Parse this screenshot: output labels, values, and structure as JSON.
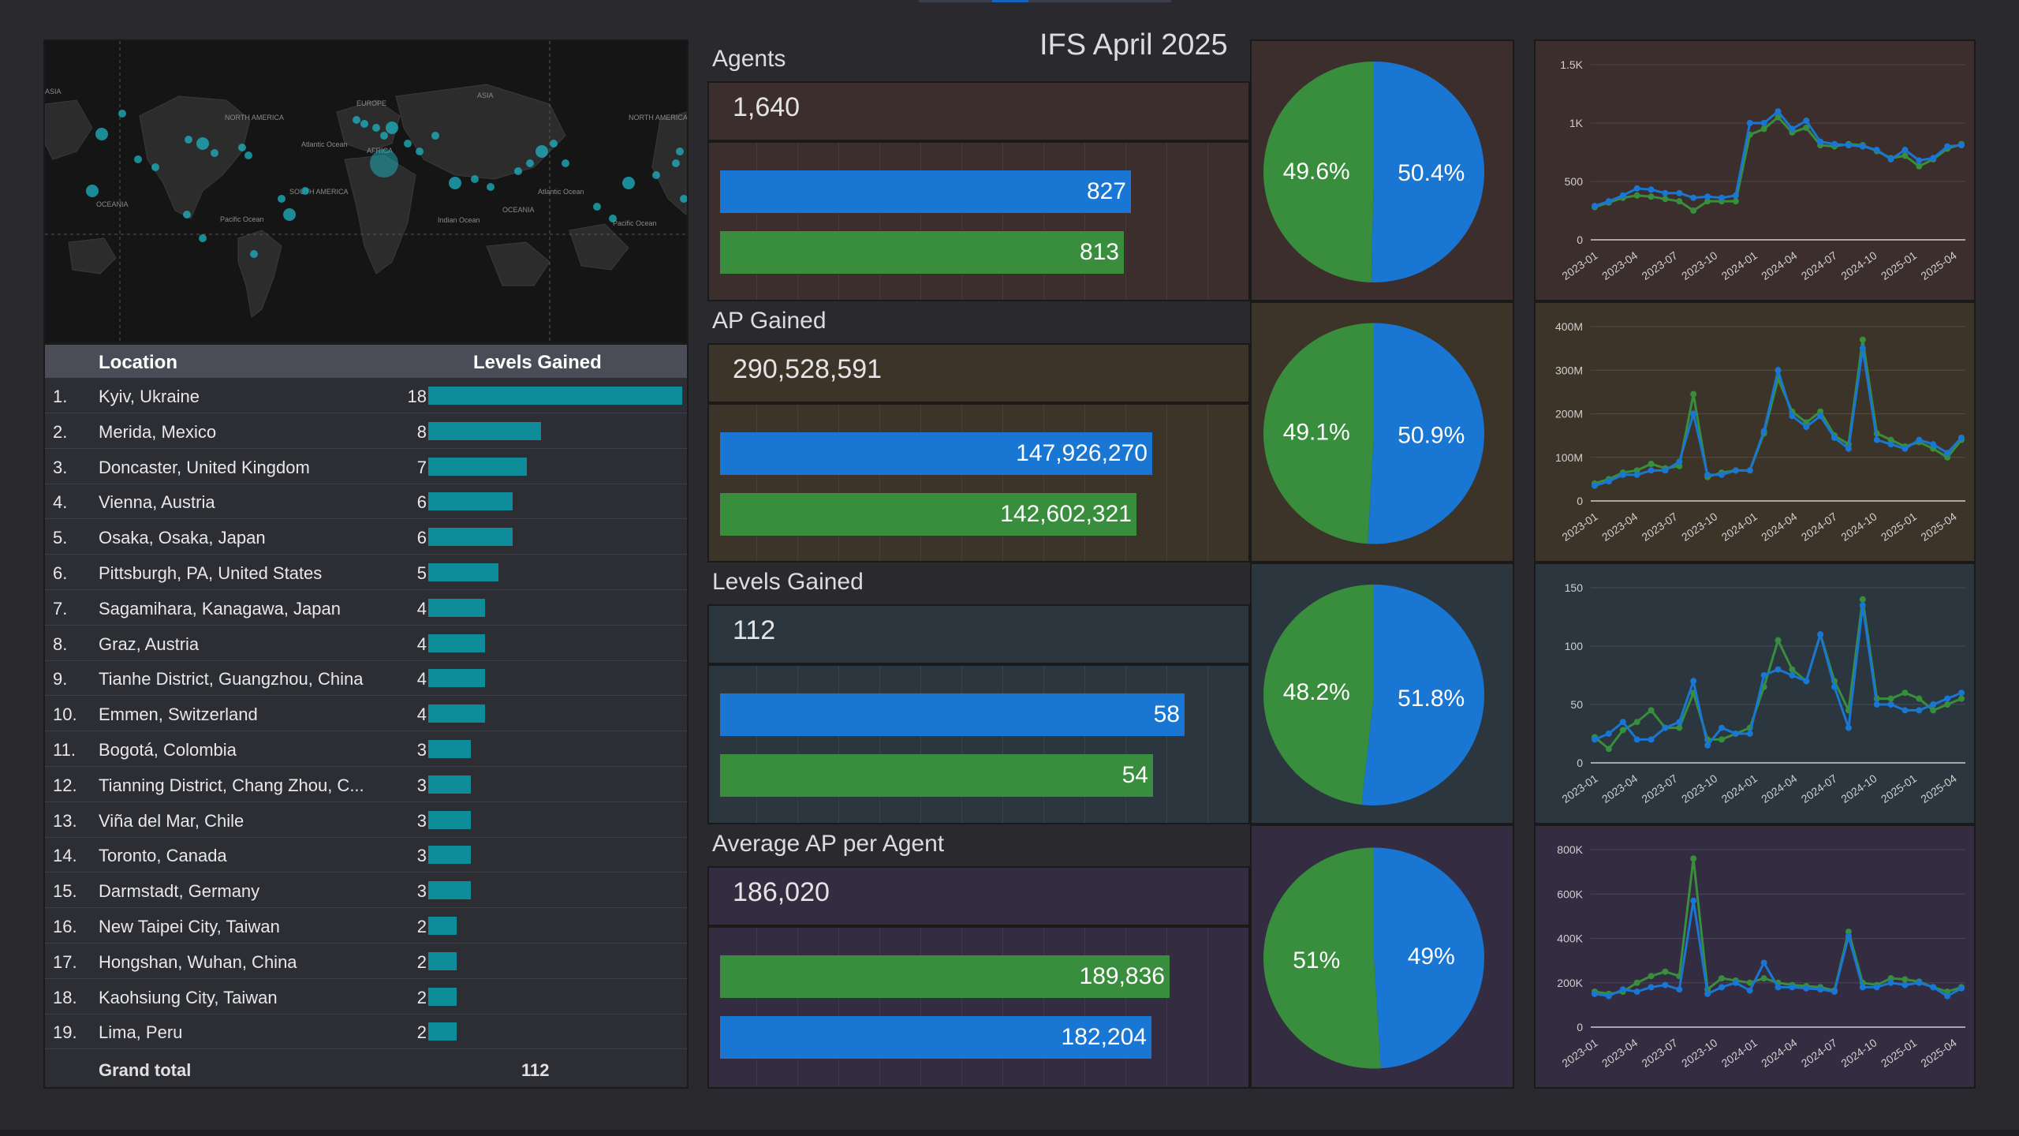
{
  "page_title": "IFS April 2025",
  "colors": {
    "blue": "#1976d2",
    "green": "#388e3c",
    "teal_bar": "#0f8c9a",
    "panel_agents": "#3b2e2c",
    "panel_ap": "#3c3429",
    "panel_levels": "#2b363e",
    "panel_avg": "#342c40"
  },
  "map": {
    "labels": [
      "ASIA",
      "NORTH AMERICA",
      "EUROPE",
      "ASIA",
      "NORTH AMERICA",
      "AFRICA",
      "SOUTH AMERICA",
      "OCEANIA",
      "OCEANIA",
      "Atlantic Ocean",
      "Pacific Ocean",
      "Indian Ocean",
      "Pacific Ocean",
      "Atlantic Ocean"
    ]
  },
  "table": {
    "col_location": "Location",
    "col_levels": "Levels Gained",
    "rows": [
      {
        "rank": "1.",
        "location": "Kyiv, Ukraine",
        "value": 18
      },
      {
        "rank": "2.",
        "location": "Merida, Mexico",
        "value": 8
      },
      {
        "rank": "3.",
        "location": "Doncaster, United Kingdom",
        "value": 7
      },
      {
        "rank": "4.",
        "location": "Vienna, Austria",
        "value": 6
      },
      {
        "rank": "5.",
        "location": "Osaka, Osaka, Japan",
        "value": 6
      },
      {
        "rank": "6.",
        "location": "Pittsburgh, PA, United States",
        "value": 5
      },
      {
        "rank": "7.",
        "location": "Sagamihara, Kanagawa, Japan",
        "value": 4
      },
      {
        "rank": "8.",
        "location": "Graz, Austria",
        "value": 4
      },
      {
        "rank": "9.",
        "location": "Tianhe District, Guangzhou, China",
        "value": 4
      },
      {
        "rank": "10.",
        "location": "Emmen, Switzerland",
        "value": 4
      },
      {
        "rank": "11.",
        "location": "Bogotá, Colombia",
        "value": 3
      },
      {
        "rank": "12.",
        "location": "Tianning District, Chang Zhou, C...",
        "value": 3
      },
      {
        "rank": "13.",
        "location": "Viña del Mar, Chile",
        "value": 3
      },
      {
        "rank": "14.",
        "location": "Toronto, Canada",
        "value": 3
      },
      {
        "rank": "15.",
        "location": "Darmstadt, Germany",
        "value": 3
      },
      {
        "rank": "16.",
        "location": "New Taipei City, Taiwan",
        "value": 2
      },
      {
        "rank": "17.",
        "location": "Hongshan, Wuhan, China",
        "value": 2
      },
      {
        "rank": "18.",
        "location": "Kaohsiung City, Taiwan",
        "value": 2
      },
      {
        "rank": "19.",
        "location": "Lima, Peru",
        "value": 2
      }
    ],
    "grand_total_label": "Grand total",
    "grand_total_value": "112"
  },
  "sections": [
    {
      "title": "Agents",
      "total": "1,640"
    },
    {
      "title": "AP Gained",
      "total": "290,528,591"
    },
    {
      "title": "Levels Gained",
      "total": "112"
    },
    {
      "title": "Average AP per Agent",
      "total": "186,020"
    }
  ],
  "chart_data": [
    {
      "type": "bar",
      "name": "Agents bars",
      "orientation": "horizontal",
      "bars": [
        {
          "color": "blue",
          "value": 827,
          "label": "827"
        },
        {
          "color": "green",
          "value": 813,
          "label": "813"
        }
      ],
      "xlim": [
        0,
        1000
      ]
    },
    {
      "type": "pie",
      "name": "Agents share",
      "slices": [
        {
          "color": "blue",
          "value": 50.4,
          "label": "50.4%"
        },
        {
          "color": "green",
          "value": 49.6,
          "label": "49.6%"
        }
      ]
    },
    {
      "type": "line",
      "name": "Agents over time",
      "x_ticks": [
        "2023-01",
        "2023-04",
        "2023-07",
        "2023-10",
        "2024-01",
        "2024-04",
        "2024-07",
        "2024-10",
        "2025-01",
        "2025-04"
      ],
      "y_ticks": [
        "0",
        "500",
        "1K",
        "1.5K"
      ],
      "ylim": [
        0,
        1500
      ],
      "series": [
        {
          "color": "blue",
          "values": [
            290,
            330,
            380,
            440,
            430,
            400,
            400,
            360,
            370,
            360,
            380,
            1000,
            1000,
            1100,
            950,
            1020,
            840,
            820,
            810,
            800,
            770,
            690,
            770,
            680,
            700,
            800,
            810
          ]
        },
        {
          "color": "green",
          "values": [
            280,
            320,
            360,
            380,
            370,
            350,
            330,
            250,
            330,
            330,
            330,
            900,
            950,
            1050,
            920,
            960,
            810,
            800,
            820,
            810,
            760,
            700,
            720,
            630,
            690,
            780,
            820
          ]
        }
      ]
    },
    {
      "type": "bar",
      "name": "AP Gained bars",
      "orientation": "horizontal",
      "bars": [
        {
          "color": "blue",
          "value": 147926270,
          "label": "147,926,270"
        },
        {
          "color": "green",
          "value": 142602321,
          "label": "142,602,321"
        }
      ],
      "xlim": [
        0,
        170000000
      ]
    },
    {
      "type": "pie",
      "name": "AP share",
      "slices": [
        {
          "color": "blue",
          "value": 50.9,
          "label": "50.9%"
        },
        {
          "color": "green",
          "value": 49.1,
          "label": "49.1%"
        }
      ]
    },
    {
      "type": "line",
      "name": "AP over time",
      "x_ticks": [
        "2023-01",
        "2023-04",
        "2023-07",
        "2023-10",
        "2024-01",
        "2024-04",
        "2024-07",
        "2024-10",
        "2025-01",
        "2025-04"
      ],
      "y_ticks": [
        "0",
        "100M",
        "200M",
        "300M",
        "400M"
      ],
      "ylim": [
        0,
        400000000
      ],
      "series": [
        {
          "color": "blue",
          "values": [
            35000000,
            45000000,
            60000000,
            60000000,
            70000000,
            70000000,
            90000000,
            200000000,
            60000000,
            60000000,
            70000000,
            70000000,
            160000000,
            300000000,
            195000000,
            170000000,
            195000000,
            145000000,
            120000000,
            350000000,
            140000000,
            130000000,
            120000000,
            140000000,
            130000000,
            110000000,
            145000000
          ]
        },
        {
          "color": "green",
          "values": [
            40000000,
            50000000,
            65000000,
            70000000,
            85000000,
            75000000,
            80000000,
            245000000,
            55000000,
            65000000,
            70000000,
            70000000,
            155000000,
            280000000,
            205000000,
            180000000,
            205000000,
            150000000,
            130000000,
            370000000,
            155000000,
            140000000,
            125000000,
            135000000,
            120000000,
            100000000,
            140000000
          ]
        }
      ]
    },
    {
      "type": "bar",
      "name": "Levels Gained bars",
      "orientation": "horizontal",
      "bars": [
        {
          "color": "blue",
          "value": 58,
          "label": "58"
        },
        {
          "color": "green",
          "value": 54,
          "label": "54"
        }
      ],
      "xlim": [
        0,
        62
      ]
    },
    {
      "type": "pie",
      "name": "Levels share",
      "slices": [
        {
          "color": "blue",
          "value": 51.8,
          "label": "51.8%"
        },
        {
          "color": "green",
          "value": 48.2,
          "label": "48.2%"
        }
      ]
    },
    {
      "type": "line",
      "name": "Levels over time",
      "x_ticks": [
        "2023-01",
        "2023-04",
        "2023-07",
        "2023-10",
        "2024-01",
        "2024-04",
        "2024-07",
        "2024-10",
        "2025-01",
        "2025-04"
      ],
      "y_ticks": [
        "0",
        "50",
        "100",
        "150"
      ],
      "ylim": [
        0,
        150
      ],
      "series": [
        {
          "color": "blue",
          "values": [
            20,
            25,
            35,
            20,
            20,
            30,
            35,
            70,
            15,
            30,
            25,
            25,
            75,
            80,
            75,
            70,
            110,
            65,
            30,
            135,
            50,
            50,
            45,
            45,
            50,
            55,
            60
          ]
        },
        {
          "color": "green",
          "values": [
            22,
            12,
            28,
            35,
            45,
            30,
            30,
            60,
            20,
            20,
            25,
            30,
            65,
            105,
            80,
            70,
            110,
            70,
            45,
            140,
            55,
            55,
            60,
            55,
            45,
            50,
            55
          ]
        }
      ]
    },
    {
      "type": "bar",
      "name": "Average AP per Agent bars",
      "orientation": "horizontal",
      "bars": [
        {
          "color": "green",
          "value": 189836,
          "label": "189,836"
        },
        {
          "color": "blue",
          "value": 182204,
          "label": "182,204"
        }
      ],
      "xlim": [
        0,
        210000
      ]
    },
    {
      "type": "pie",
      "name": "Avg AP share",
      "slices": [
        {
          "color": "blue",
          "value": 49,
          "label": "49%"
        },
        {
          "color": "green",
          "value": 51,
          "label": "51%"
        }
      ]
    },
    {
      "type": "line",
      "name": "Avg AP over time",
      "x_ticks": [
        "2023-01",
        "2023-04",
        "2023-07",
        "2023-10",
        "2024-01",
        "2024-04",
        "2024-07",
        "2024-10",
        "2025-01",
        "2025-04"
      ],
      "y_ticks": [
        "0",
        "200K",
        "400K",
        "600K",
        "800K"
      ],
      "ylim": [
        0,
        800000
      ],
      "series": [
        {
          "color": "blue",
          "values": [
            150000,
            140000,
            170000,
            160000,
            180000,
            190000,
            170000,
            570000,
            150000,
            180000,
            200000,
            165000,
            290000,
            180000,
            180000,
            175000,
            170000,
            160000,
            410000,
            180000,
            180000,
            200000,
            190000,
            200000,
            180000,
            140000,
            175000
          ]
        },
        {
          "color": "green",
          "values": [
            160000,
            150000,
            160000,
            200000,
            230000,
            250000,
            230000,
            760000,
            170000,
            220000,
            210000,
            200000,
            220000,
            200000,
            190000,
            185000,
            180000,
            165000,
            430000,
            200000,
            190000,
            220000,
            215000,
            205000,
            180000,
            160000,
            180000
          ]
        }
      ]
    }
  ]
}
